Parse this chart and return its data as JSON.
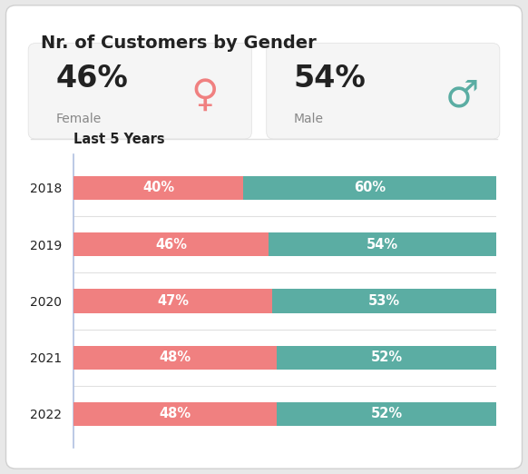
{
  "title": "Nr. of Customers by Gender",
  "subtitle": "Last 5 Years",
  "female_pct": "46%",
  "male_pct": "54%",
  "female_label": "Female",
  "male_label": "Male",
  "years": [
    "2018",
    "2019",
    "2020",
    "2021",
    "2022"
  ],
  "female_values": [
    40,
    46,
    47,
    48,
    48
  ],
  "male_values": [
    60,
    54,
    53,
    52,
    52
  ],
  "female_color": "#F08080",
  "male_color": "#5BADA3",
  "background_color": "#e8e8e8",
  "card_color": "#ffffff",
  "summary_box_color": "#f5f5f5",
  "text_color": "#222222",
  "gray_text_color": "#888888",
  "bar_text_color": "#ffffff",
  "divider_color": "#e0e0e0",
  "spine_color": "#b0c0e0",
  "title_fontsize": 14,
  "subtitle_fontsize": 10.5,
  "bar_label_fontsize": 10.5,
  "tick_fontsize": 10,
  "summary_pct_fontsize": 24,
  "summary_label_fontsize": 10
}
